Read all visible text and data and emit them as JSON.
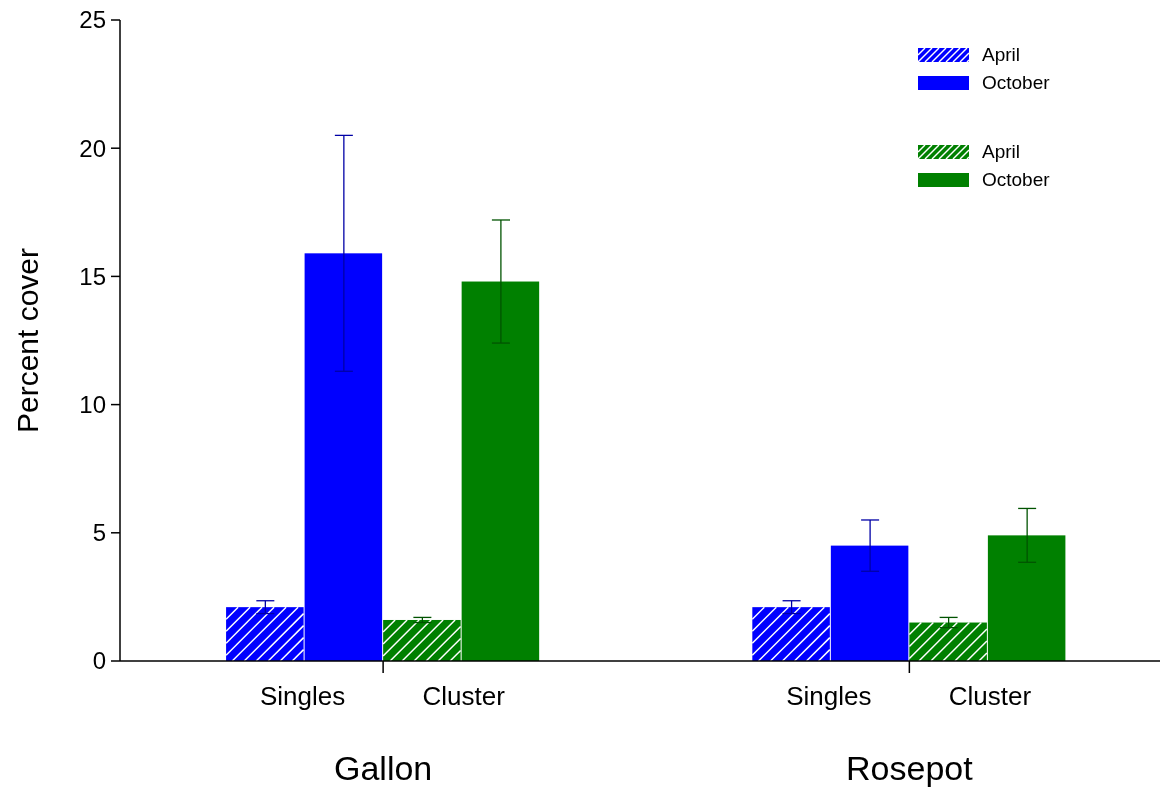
{
  "chart_data": {
    "type": "bar",
    "ylabel": "Percent cover",
    "categories": [
      "Singles",
      "Cluster",
      "Singles",
      "Cluster"
    ],
    "series": [
      {
        "name": "April",
        "color": "#0000ff",
        "values": [
          2.1,
          null,
          2.1,
          null
        ],
        "errors": [
          0.25,
          null,
          0.25,
          null
        ]
      },
      {
        "name": "October",
        "color": "#0000ff",
        "values": [
          15.9,
          null,
          4.5,
          null
        ],
        "errors": [
          4.6,
          null,
          1.0,
          null
        ]
      },
      {
        "name": "April",
        "color": "#008000",
        "values": [
          null,
          1.6,
          null,
          1.5
        ],
        "errors": [
          null,
          0.1,
          null,
          0.2
        ]
      },
      {
        "name": "October",
        "color": "#008000",
        "values": [
          null,
          14.8,
          null,
          4.9
        ],
        "errors": [
          null,
          2.4,
          null,
          1.05
        ]
      }
    ],
    "annotations": [
      "Gallon",
      "Rosepot"
    ],
    "ylim": [
      0,
      25
    ],
    "yticks": [
      0,
      5,
      10,
      15,
      20,
      25
    ],
    "grid": false,
    "legend": "top right"
  }
}
